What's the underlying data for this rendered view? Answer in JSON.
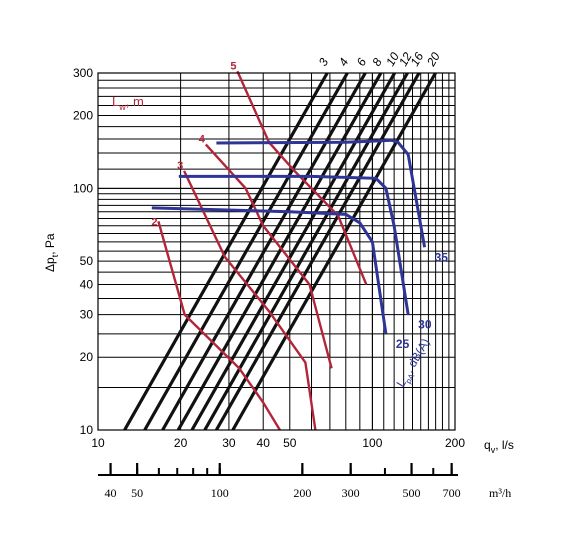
{
  "chart_data": {
    "type": "line",
    "scale": "log-log",
    "xlabel": "q",
    "xlabel_sub": "v",
    "xlabel_unit": ", l/s",
    "ylabel": "Δp",
    "ylabel_sub": "t",
    "ylabel_unit": ", Pa",
    "xlim": [
      10,
      200
    ],
    "ylim": [
      10,
      300
    ],
    "x_ticks": [
      "10",
      "20",
      "30",
      "40",
      "50",
      "100",
      "200"
    ],
    "y_ticks": [
      "10",
      "20",
      "30",
      "40",
      "50",
      "100",
      "200",
      "300"
    ],
    "grid": true,
    "secondary_axis": {
      "unit": "m³/h",
      "ticks": [
        "40",
        "50",
        "100",
        "200",
        "300",
        "500",
        "700"
      ]
    },
    "velocity_lines": {
      "labels": [
        "3",
        "4",
        "6",
        "8",
        "10",
        "12",
        "16",
        "20"
      ],
      "x_at_10pa": [
        12.5,
        14.8,
        17.2,
        19.6,
        22,
        24.5,
        27,
        31
      ]
    },
    "lwm_title": "L",
    "lwm_title_sub": "w",
    "lwm_title_unit": ", m",
    "lwm_series": [
      {
        "name": "2",
        "points": [
          [
            16.6,
            73
          ],
          [
            20.7,
            30
          ],
          [
            32.7,
            18
          ],
          [
            40,
            13
          ],
          [
            46,
            10
          ]
        ]
      },
      {
        "name": "3",
        "points": [
          [
            20.6,
            118
          ],
          [
            29,
            52
          ],
          [
            42,
            31
          ],
          [
            57,
            19
          ],
          [
            62,
            10
          ]
        ]
      },
      {
        "name": "4",
        "points": [
          [
            24.7,
            152
          ],
          [
            34.5,
            100
          ],
          [
            40,
            70
          ],
          [
            59,
            40
          ],
          [
            71,
            18
          ]
        ]
      },
      {
        "name": "5",
        "points": [
          [
            32.2,
            305
          ],
          [
            42,
            155
          ],
          [
            52,
            118
          ],
          [
            75,
            77
          ],
          [
            95,
            40
          ]
        ]
      }
    ],
    "lpa_title": "L",
    "lpa_title_sub": "pA",
    "lpa_title_unit": ", dB(A)",
    "lpa_series": [
      {
        "name": "25",
        "points": [
          [
            15.7,
            83
          ],
          [
            50,
            80
          ],
          [
            80,
            78
          ],
          [
            90,
            72
          ],
          [
            100,
            60
          ],
          [
            112,
            25
          ]
        ]
      },
      {
        "name": "30",
        "points": [
          [
            19.7,
            112
          ],
          [
            60,
            112
          ],
          [
            103,
            110
          ],
          [
            112,
            100
          ],
          [
            120,
            70
          ],
          [
            135,
            30
          ]
        ]
      },
      {
        "name": "35",
        "points": [
          [
            27,
            154
          ],
          [
            80,
            155
          ],
          [
            118,
            158
          ],
          [
            124,
            155
          ],
          [
            135,
            138
          ],
          [
            155,
            57
          ]
        ]
      }
    ]
  }
}
